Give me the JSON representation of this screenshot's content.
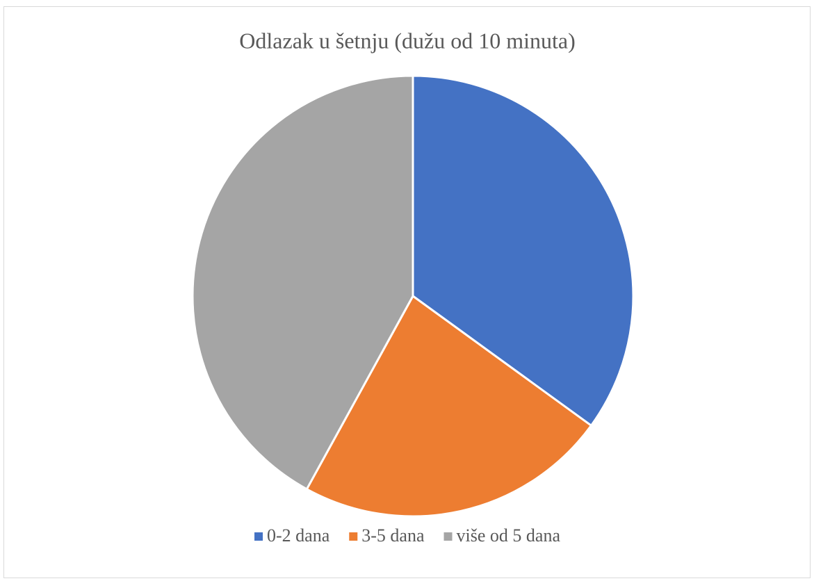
{
  "chart_data": {
    "type": "pie",
    "title": "Odlazak u šetnju (dužu od 10 minuta)",
    "categories": [
      "0-2 dana",
      "3-5 dana",
      "više od 5 dana"
    ],
    "values": [
      35,
      23,
      42
    ],
    "colors": [
      "#4472c4",
      "#ed7d31",
      "#a5a5a5"
    ],
    "legend": "bottom"
  }
}
